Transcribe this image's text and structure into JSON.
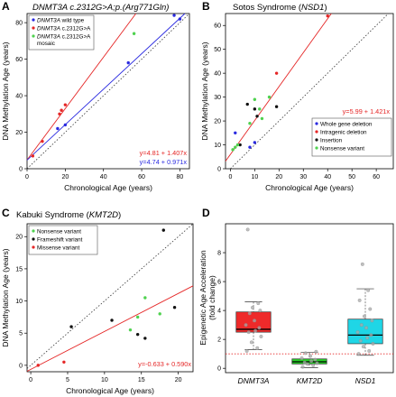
{
  "chart_data": [
    {
      "type": "scatter",
      "panel": "A",
      "title": "DNMT3A c.2312G>A;p.(Arg771Gln)",
      "xlabel": "Chronological Age (years)",
      "ylabel": "DNA Methylation Age (years)",
      "xlim": [
        0,
        85
      ],
      "ylim": [
        0,
        85
      ],
      "xticks": [
        0,
        20,
        40,
        60,
        80
      ],
      "yticks": [
        0,
        20,
        40,
        60,
        80
      ],
      "identity_line": true,
      "legend_position": "top-left",
      "series": [
        {
          "name_em": "DNMT3A",
          "name_rest": " wild type",
          "color": "#2a2ae0",
          "points": [
            [
              16,
              22
            ],
            [
              20,
              24
            ],
            [
              53,
              58
            ],
            [
              77,
              84
            ],
            [
              80,
              82
            ]
          ]
        },
        {
          "name_em": "DNMT3A",
          "name_rest": " c.2312G>A",
          "color": "#e52626",
          "points": [
            [
              3,
              7
            ],
            [
              8,
              15
            ],
            [
              17,
              30
            ],
            [
              18,
              32
            ],
            [
              20,
              35
            ]
          ]
        },
        {
          "name_em": "DNMT3A",
          "name_rest": " c.2312G>A",
          "name_line2": "mosaic",
          "color": "#4fd24f",
          "points": [
            [
              56,
              74
            ]
          ]
        }
      ],
      "fits": [
        {
          "intercept": 4.81,
          "slope": 1.407,
          "color": "#e52626",
          "label": "y=4.81 + 1.407x"
        },
        {
          "intercept": 4.74,
          "slope": 0.971,
          "color": "#2a2ae0",
          "label": "y=4.74 + 0.971x"
        }
      ]
    },
    {
      "type": "scatter",
      "panel": "B",
      "title_plain": "Sotos Syndrome (",
      "title_em": "NSD1",
      "title_close": ")",
      "xlabel": "Chronological Age (years)",
      "ylabel": "DNA Methylation Age (years)",
      "xlim": [
        -2,
        67
      ],
      "ylim": [
        0,
        65
      ],
      "xticks": [
        0,
        10,
        20,
        30,
        40,
        50,
        60
      ],
      "yticks": [
        0,
        10,
        20,
        30,
        40,
        50,
        60
      ],
      "identity_line": true,
      "legend_position": "bottom-right",
      "series": [
        {
          "name": "Whole gene deletion",
          "color": "#2a2ae0",
          "points": [
            [
              2,
              15
            ],
            [
              8,
              9
            ],
            [
              10,
              11
            ]
          ]
        },
        {
          "name": "Intragenic deletion",
          "color": "#e52626",
          "points": [
            [
              19,
              40
            ],
            [
              40,
              64
            ]
          ]
        },
        {
          "name": "Insertion",
          "color": "#111111",
          "points": [
            [
              4,
              10
            ],
            [
              7,
              27
            ],
            [
              10,
              25
            ],
            [
              11,
              22
            ],
            [
              19,
              26
            ]
          ]
        },
        {
          "name": "Nonsense variant",
          "color": "#4fd24f",
          "points": [
            [
              1,
              8
            ],
            [
              2,
              9
            ],
            [
              3,
              10
            ],
            [
              8,
              19
            ],
            [
              10,
              29
            ],
            [
              12,
              25
            ],
            [
              13,
              21
            ],
            [
              16,
              30
            ]
          ]
        }
      ],
      "fits": [
        {
          "intercept": 5.99,
          "slope": 1.421,
          "color": "#e52626",
          "label": "y=5.99 + 1.421x"
        }
      ]
    },
    {
      "type": "scatter",
      "panel": "C",
      "title_plain": "Kabuki Syndrome (",
      "title_em": "KMT2D",
      "title_close": ")",
      "xlabel": "Chronological Age (years)",
      "ylabel": "DNA Methylation Age (years)",
      "xlim": [
        -0.5,
        22
      ],
      "ylim": [
        -1,
        22
      ],
      "xticks": [
        0,
        5,
        10,
        15,
        20
      ],
      "yticks": [
        0,
        5,
        10,
        15,
        20
      ],
      "identity_line": true,
      "legend_position": "top-left",
      "series": [
        {
          "name": "Nonsense variant",
          "color": "#4fd24f",
          "points": [
            [
              13.5,
              5.5
            ],
            [
              14.5,
              7.5
            ],
            [
              15.5,
              10.5
            ],
            [
              17.5,
              8
            ]
          ]
        },
        {
          "name": "Frameshift variant",
          "color": "#111111",
          "points": [
            [
              5.5,
              6
            ],
            [
              11,
              7
            ],
            [
              14.5,
              4.8
            ],
            [
              15.5,
              4.2
            ],
            [
              18,
              21
            ],
            [
              19.5,
              9
            ]
          ]
        },
        {
          "name": "Missense variant",
          "color": "#e52626",
          "points": [
            [
              1,
              0
            ],
            [
              4.5,
              0.5
            ]
          ]
        }
      ],
      "fits": [
        {
          "intercept": -0.633,
          "slope": 0.59,
          "color": "#e52626",
          "label": "y=-0.633 + 0.590x"
        }
      ]
    },
    {
      "type": "box",
      "panel": "D",
      "ylabel_line1": "Epigenetic Age Acceleration",
      "ylabel_line2": "(fold change)",
      "ylim": [
        -0.3,
        10
      ],
      "yticks": [
        0,
        2,
        4,
        6,
        8
      ],
      "reference_line": 1,
      "boxes": [
        {
          "label": "DNMT3A",
          "color": "#ee2a2a",
          "whisker_low": 1.3,
          "q1": 2.5,
          "median": 2.7,
          "q3": 3.9,
          "whisker_high": 4.6,
          "points": [
            1.2,
            1.4,
            1.8,
            2.2,
            2.5,
            2.6,
            2.8,
            3.0,
            3.3,
            3.8,
            4.0,
            4.2,
            4.5,
            9.6
          ]
        },
        {
          "label": "KMT2D",
          "color": "#28d028",
          "whisker_low": 0.05,
          "q1": 0.3,
          "median": 0.45,
          "q3": 0.65,
          "whisker_high": 1.1,
          "points": [
            0.1,
            0.2,
            0.3,
            0.35,
            0.4,
            0.5,
            0.6,
            0.7,
            0.85,
            1.05,
            1.15
          ]
        },
        {
          "label": "NSD1",
          "color": "#1fd6e6",
          "whisker_low": 0.9,
          "q1": 1.7,
          "median": 2.3,
          "q3": 3.4,
          "whisker_high": 5.5,
          "points": [
            1.0,
            1.2,
            1.5,
            1.7,
            1.9,
            2.1,
            2.3,
            2.5,
            2.8,
            3.0,
            3.3,
            3.6,
            4.1,
            4.7,
            5.4,
            7.2
          ]
        }
      ]
    }
  ]
}
